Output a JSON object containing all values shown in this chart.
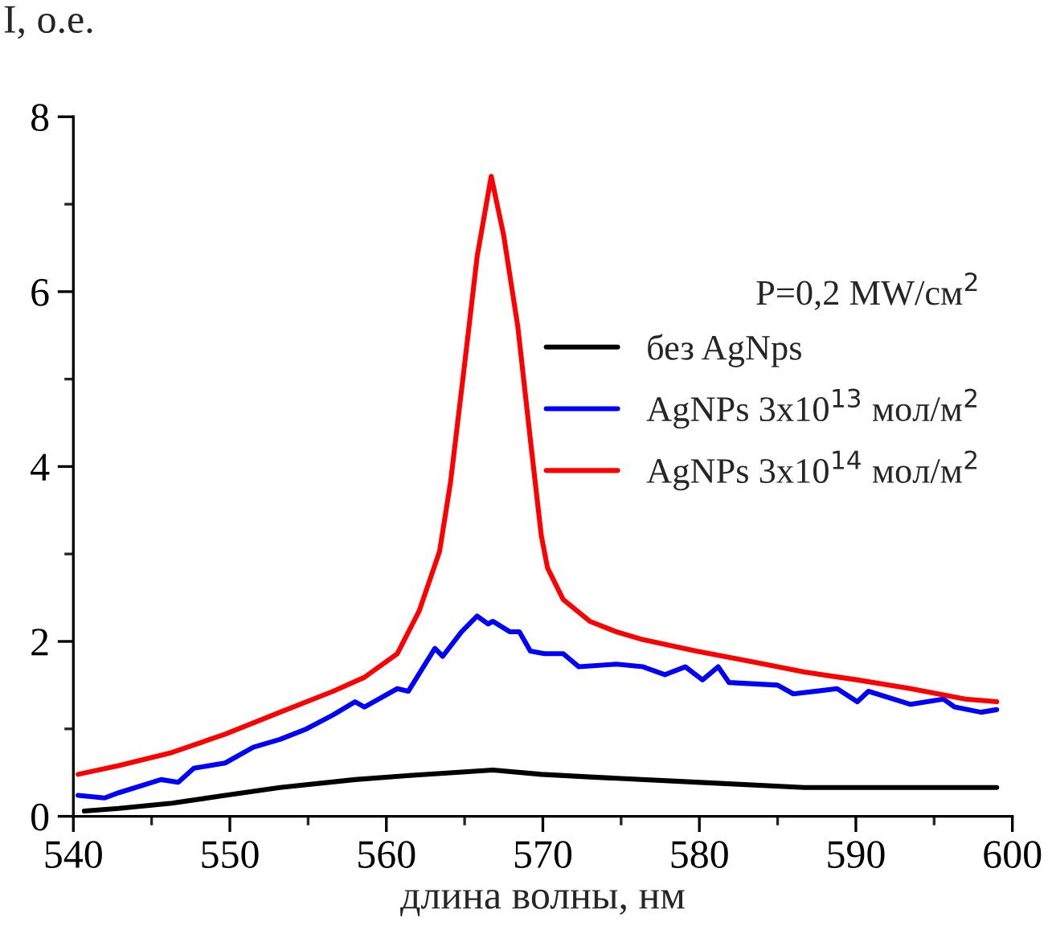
{
  "chart_data": {
    "type": "line",
    "xlabel": "длина волны, нм",
    "ylabel": "I, о.е.",
    "legend_title": "P=0,2 MW/см$^{2}$",
    "legend": "right",
    "xlim": [
      540,
      600
    ],
    "ylim": [
      0,
      8
    ],
    "xticks": [
      540,
      {
        "value": 545,
        "label": null
      },
      550,
      {
        "value": 555,
        "label": null
      },
      560,
      {
        "value": 565,
        "label": null
      },
      570,
      {
        "value": 575,
        "label": null
      },
      580,
      {
        "value": 585,
        "label": null
      },
      590,
      {
        "value": 595,
        "label": null
      },
      600
    ],
    "yticks": [
      0,
      {
        "value": 1,
        "label": null
      },
      2,
      {
        "value": 3,
        "label": null
      },
      4,
      {
        "value": 5,
        "label": null
      },
      6,
      {
        "value": 7,
        "label": null
      },
      8
    ],
    "grid": false,
    "marker": "none",
    "line_style": "solid",
    "series": [
      {
        "name": "без AgNps",
        "color": "#000000",
        "x": [
          540.7,
          542.9,
          546.3,
          549.7,
          553.2,
          558,
          561.7,
          566.8,
          569.9,
          573,
          579.8,
          586.7,
          593.5,
          599
        ],
        "values": [
          0.06,
          0.09,
          0.15,
          0.24,
          0.33,
          0.42,
          0.47,
          0.53,
          0.48,
          0.45,
          0.39,
          0.33,
          0.33,
          0.33
        ]
      },
      {
        "name": "AgNPs 3x10$^{13}$ мол/м$^{2}$",
        "color": "#0000ff",
        "x": [
          540.3,
          542,
          542.9,
          545.6,
          546.7,
          547.7,
          549.7,
          551.5,
          553.2,
          554.9,
          556.6,
          558,
          558.6,
          560.7,
          561.4,
          563.1,
          563.6,
          564.8,
          565.8,
          566.5,
          566.8,
          567.9,
          568.5,
          569.2,
          570.1,
          571.3,
          572.3,
          574.7,
          576.4,
          577.8,
          579.1,
          580.2,
          581.2,
          581.9,
          585,
          586,
          588.8,
          590.1,
          590.8,
          593.5,
          595.6,
          596.3,
          598,
          599
        ],
        "values": [
          0.24,
          0.21,
          0.27,
          0.42,
          0.39,
          0.55,
          0.61,
          0.79,
          0.88,
          1.0,
          1.16,
          1.31,
          1.25,
          1.46,
          1.43,
          1.92,
          1.83,
          2.11,
          2.29,
          2.2,
          2.23,
          2.11,
          2.11,
          1.89,
          1.86,
          1.86,
          1.71,
          1.74,
          1.71,
          1.62,
          1.71,
          1.56,
          1.71,
          1.53,
          1.5,
          1.4,
          1.46,
          1.31,
          1.43,
          1.28,
          1.34,
          1.25,
          1.19,
          1.22
        ]
      },
      {
        "name": "AgNPs 3x10$^{14}$ мол/м$^{2}$",
        "color": "#ff0000",
        "x": [
          540.3,
          542.9,
          546.3,
          549.7,
          553.2,
          556.6,
          558.6,
          560.7,
          562.1,
          563.4,
          564.1,
          565,
          565.8,
          566.7,
          567.5,
          568.4,
          569.2,
          569.9,
          570.3,
          571.3,
          573,
          574.7,
          576.4,
          579.8,
          583.3,
          586.7,
          590.1,
          593.5,
          597,
          599
        ],
        "values": [
          0.48,
          0.58,
          0.73,
          0.94,
          1.19,
          1.43,
          1.59,
          1.86,
          2.35,
          3.03,
          3.82,
          5.17,
          6.4,
          7.32,
          6.64,
          5.6,
          4.31,
          3.21,
          2.84,
          2.48,
          2.23,
          2.11,
          2.02,
          1.89,
          1.77,
          1.65,
          1.56,
          1.46,
          1.34,
          1.31
        ]
      }
    ]
  }
}
